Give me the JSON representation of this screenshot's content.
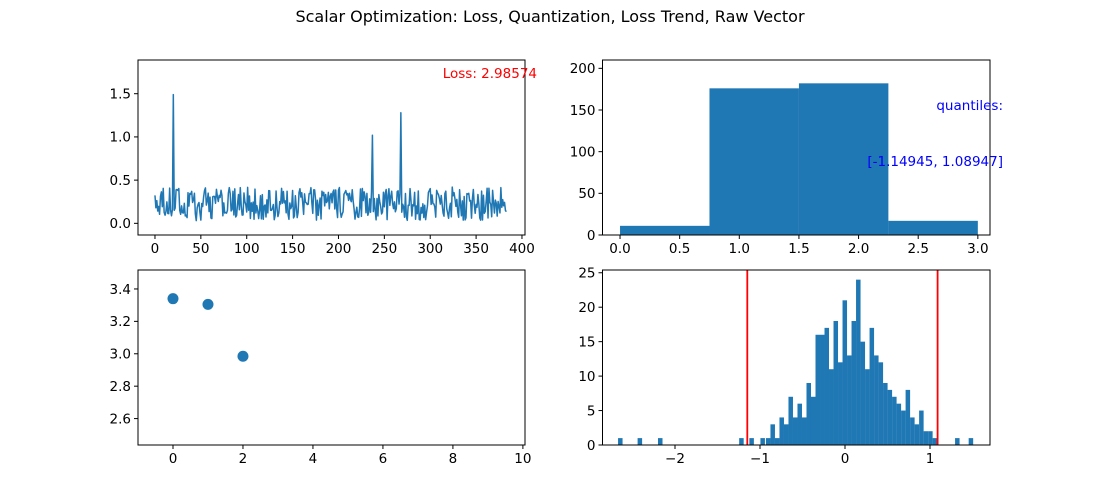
{
  "figure": {
    "title": "Scalar Optimization: Loss, Quantization, Loss Trend, Raw Vector",
    "background": "#ffffff",
    "frame_color": "#000000",
    "series_blue": "#1f77b4"
  },
  "chart_data": [
    {
      "id": "loss_curve",
      "type": "line",
      "annotation": {
        "text": "Loss: 2.98574",
        "color": "#ff0000"
      },
      "line_color": "#1f77b4",
      "n_points": 384,
      "noise_band": {
        "min": 0.03,
        "max": 0.42,
        "seed": 20
      },
      "spikes": [
        {
          "x": 20,
          "y": 1.49
        },
        {
          "x": 237,
          "y": 1.02
        },
        {
          "x": 268,
          "y": 1.28
        }
      ],
      "xlim": [
        -18.5,
        403.3
      ],
      "ylim": [
        -0.135,
        1.89
      ],
      "x_tick_vals": [
        0,
        50,
        100,
        150,
        200,
        250,
        300,
        350,
        400
      ],
      "x_tick_labels": [
        "0",
        "50",
        "100",
        "150",
        "200",
        "250",
        "300",
        "350",
        "400"
      ],
      "y_tick_vals": [
        0.0,
        0.5,
        1.0,
        1.5
      ],
      "y_tick_labels": [
        "0.0",
        "0.5",
        "1.0",
        "1.5"
      ]
    },
    {
      "id": "quantization_hist",
      "type": "bar",
      "annotation": {
        "line1": "quantiles:",
        "line2": "[-1.14945, 1.08947]",
        "color": "#0000ff"
      },
      "bar_color": "#1f77b4",
      "bin_edges": [
        0.0,
        0.75,
        1.5,
        2.25,
        3.0
      ],
      "counts": [
        11,
        176,
        182,
        17
      ],
      "xlim": [
        -0.147,
        3.102
      ],
      "ylim": [
        0,
        210
      ],
      "x_tick_vals": [
        0.0,
        0.5,
        1.0,
        1.5,
        2.0,
        2.5,
        3.0
      ],
      "x_tick_labels": [
        "0.0",
        "0.5",
        "1.0",
        "1.5",
        "2.0",
        "2.5",
        "3.0"
      ],
      "y_tick_vals": [
        0,
        50,
        100,
        150,
        200
      ],
      "y_tick_labels": [
        "0",
        "50",
        "100",
        "150",
        "200"
      ]
    },
    {
      "id": "loss_trend",
      "type": "scatter",
      "dot_color": "#1f77b4",
      "dot_radius": 5.5,
      "points": [
        [
          0,
          3.34
        ],
        [
          1,
          3.305
        ],
        [
          2,
          2.985
        ]
      ],
      "xlim": [
        -1.0,
        10.06
      ],
      "ylim": [
        2.437,
        3.517
      ],
      "x_tick_vals": [
        0,
        2,
        4,
        6,
        8,
        10
      ],
      "x_tick_labels": [
        "0",
        "2",
        "4",
        "6",
        "8",
        "10"
      ],
      "y_tick_vals": [
        2.6,
        2.8,
        3.0,
        3.2,
        3.4
      ],
      "y_tick_labels": [
        "2.6",
        "2.8",
        "3.0",
        "3.2",
        "3.4"
      ]
    },
    {
      "id": "raw_vector_hist",
      "type": "bar",
      "bar_color": "#1f77b4",
      "bin_width": 0.053,
      "main_start": -0.93,
      "main_heights": [
        1,
        3,
        1,
        4,
        3,
        7,
        4,
        6,
        4,
        9,
        7,
        16,
        16,
        17,
        11,
        18,
        12,
        21,
        13,
        18,
        24,
        15,
        11,
        17,
        13,
        12,
        9,
        8,
        7,
        6,
        5,
        8,
        4,
        3,
        5,
        2,
        2,
        1
      ],
      "outlier_bins": [
        {
          "x": -2.67,
          "h": 1
        },
        {
          "x": -2.44,
          "h": 1
        },
        {
          "x": -2.2,
          "h": 1
        },
        {
          "x": -1.245,
          "h": 1
        },
        {
          "x": -1.125,
          "h": 1
        },
        {
          "x": -0.995,
          "h": 1
        },
        {
          "x": 1.295,
          "h": 1
        },
        {
          "x": 1.455,
          "h": 1
        }
      ],
      "vlines": [
        {
          "x": -1.14945,
          "color": "#ff0000"
        },
        {
          "x": 1.08947,
          "color": "#ff0000"
        }
      ],
      "xlim": [
        -2.853,
        1.706
      ],
      "ylim": [
        0,
        25.4
      ],
      "x_tick_vals": [
        -2,
        -1,
        0,
        1
      ],
      "x_tick_labels": [
        "−2",
        "−1",
        "0",
        "1"
      ],
      "y_tick_vals": [
        0,
        5,
        10,
        15,
        20,
        25
      ],
      "y_tick_labels": [
        "0",
        "5",
        "10",
        "15",
        "20",
        "25"
      ]
    }
  ]
}
